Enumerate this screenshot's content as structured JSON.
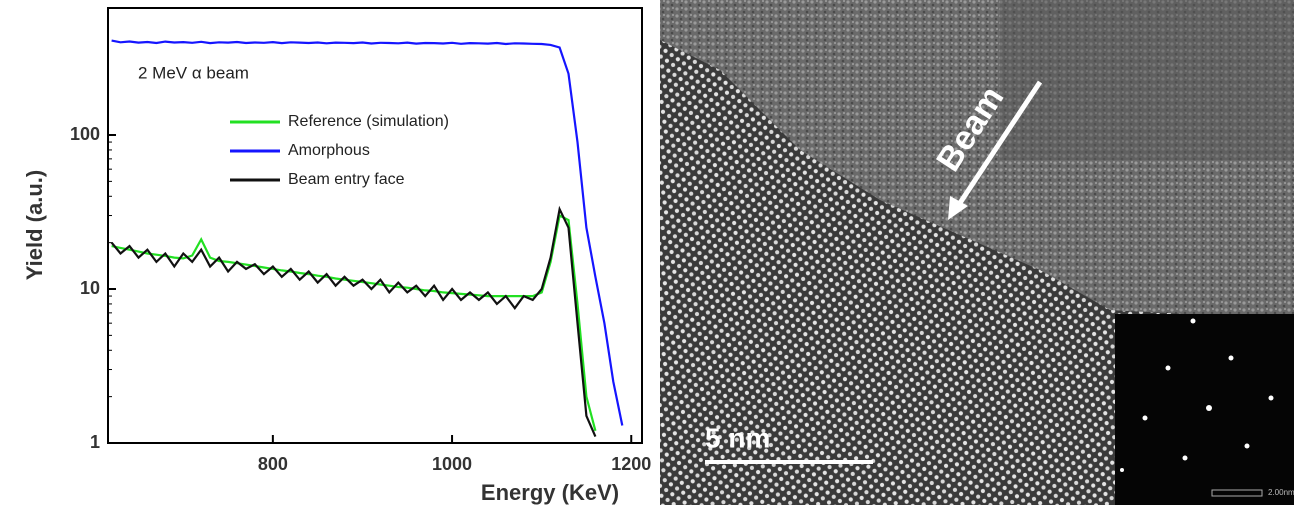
{
  "chart_data": {
    "type": "line",
    "yscale": "log",
    "ylabel": "Yield (a.u.)",
    "xlabel": "Energy (KeV)",
    "annotation": "2 MeV α beam",
    "legend": "upper center",
    "xlim": [
      616,
      1212
    ],
    "ylim": [
      1,
      668
    ],
    "xticks": [
      800,
      1000,
      1200
    ],
    "yticks": [
      1,
      10,
      100
    ],
    "x": [
      620,
      630,
      640,
      650,
      660,
      670,
      680,
      690,
      700,
      710,
      720,
      730,
      740,
      750,
      760,
      770,
      780,
      790,
      800,
      810,
      820,
      830,
      840,
      850,
      860,
      870,
      880,
      890,
      900,
      910,
      920,
      930,
      940,
      950,
      960,
      970,
      980,
      990,
      1000,
      1010,
      1020,
      1030,
      1040,
      1050,
      1060,
      1070,
      1080,
      1090,
      1100,
      1110,
      1120,
      1130,
      1140,
      1150,
      1160,
      1170,
      1180,
      1190,
      1200
    ],
    "series": [
      {
        "name": "Reference (simulation)",
        "color": "#22e022",
        "values": [
          19,
          18.5,
          18,
          17.5,
          17,
          16.7,
          16.4,
          16,
          15.8,
          16.5,
          21,
          16,
          15.2,
          15,
          14.7,
          14.4,
          14.1,
          13.8,
          13.5,
          13.2,
          13,
          12.7,
          12.5,
          12.2,
          12,
          11.7,
          11.5,
          11.3,
          11.1,
          10.9,
          10.7,
          10.5,
          10.3,
          10.2,
          10,
          9.8,
          9.7,
          9.5,
          9.4,
          9.3,
          9.2,
          9.1,
          9,
          9,
          9,
          9,
          9,
          9,
          9.5,
          15,
          30,
          28,
          8,
          2,
          1.2,
          null,
          null,
          null,
          null
        ]
      },
      {
        "name": "Amorphous",
        "color": "#1515ff",
        "values": [
          410,
          400,
          405,
          398,
          402,
          396,
          404,
          399,
          401,
          397,
          403,
          395,
          400,
          398,
          402,
          396,
          399,
          397,
          401,
          395,
          400,
          398,
          396,
          399,
          394,
          398,
          397,
          395,
          399,
          393,
          397,
          396,
          394,
          398,
          392,
          396,
          395,
          393,
          397,
          391,
          395,
          394,
          392,
          396,
          390,
          394,
          393,
          391,
          390,
          385,
          370,
          250,
          90,
          25,
          12,
          6,
          2.5,
          1.3,
          null
        ]
      },
      {
        "name": "Beam entry face",
        "color": "#111111",
        "values": [
          20,
          17,
          19,
          16,
          18,
          15,
          17,
          14,
          17,
          15,
          18,
          14,
          16,
          13,
          15,
          13.5,
          14.5,
          12.5,
          14,
          12,
          13.5,
          11.5,
          13,
          11,
          12.5,
          10.5,
          12,
          10.5,
          11.5,
          10,
          11.5,
          9.5,
          11,
          9.5,
          10.5,
          9,
          10.5,
          8.5,
          10,
          8.5,
          9.5,
          8.5,
          9.5,
          8,
          9,
          7.5,
          9,
          8.5,
          10,
          16,
          33,
          25,
          6,
          1.5,
          1.1,
          null,
          null,
          null,
          null
        ]
      }
    ]
  },
  "image": {
    "arrow_label": "Beam",
    "scale_bar": "5 nm",
    "inset_scale": "2.00nm"
  }
}
